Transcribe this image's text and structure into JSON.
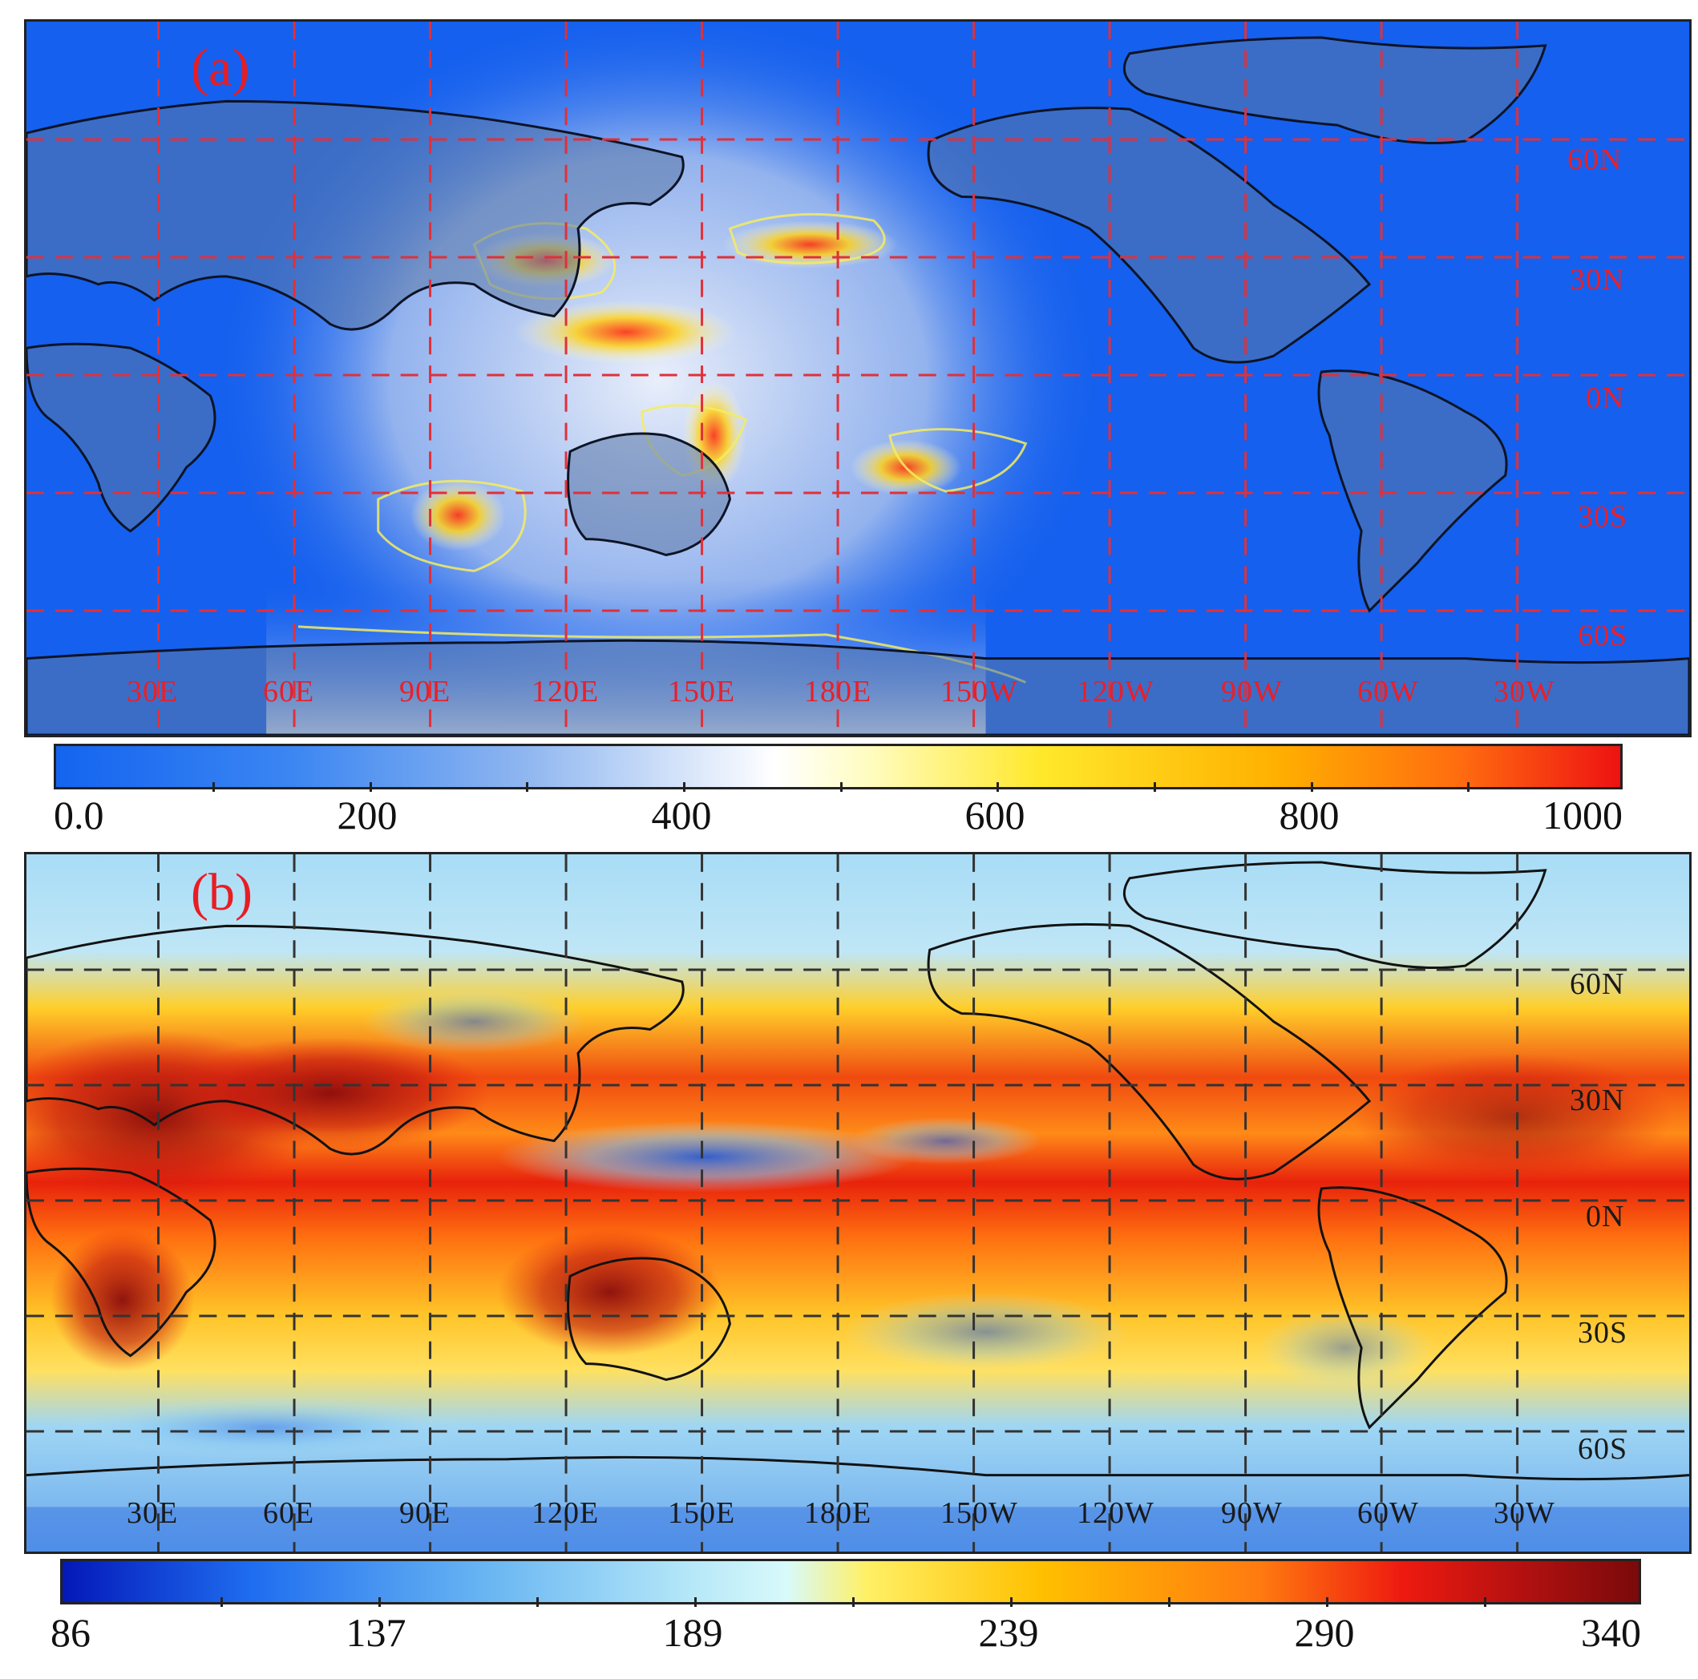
{
  "panel_a": {
    "tag": "(a)",
    "lon_labels": [
      "30E",
      "60E",
      "90E",
      "120E",
      "150E",
      "180E",
      "150W",
      "120W",
      "90W",
      "60W",
      "30W"
    ],
    "lat_labels": [
      "60N",
      "30N",
      "0N",
      "30S",
      "60S"
    ],
    "grid_color": "#e0303a",
    "colorbar": {
      "ticks": [
        "0.0",
        "200",
        "400",
        "600",
        "800",
        "1000"
      ],
      "min": 0,
      "max": 1000,
      "colors": [
        "#1464f0",
        "#8fb6f0",
        "#ffffff",
        "#ffe82a",
        "#ff6a10",
        "#ee1212"
      ]
    }
  },
  "panel_b": {
    "tag": "(b)",
    "lon_labels": [
      "30E",
      "60E",
      "90E",
      "120E",
      "150E",
      "180E",
      "150W",
      "120W",
      "90W",
      "60W",
      "30W"
    ],
    "lat_labels": [
      "60N",
      "30N",
      "0N",
      "30S",
      "60S"
    ],
    "grid_color": "#333333",
    "colorbar": {
      "ticks": [
        "86",
        "137",
        "189",
        "239",
        "290",
        "340"
      ],
      "min": 86,
      "max": 340,
      "colors": [
        "#0418b8",
        "#69b6f2",
        "#d8fafa",
        "#ffc000",
        "#ee1a10",
        "#7a0a0a"
      ]
    }
  }
}
